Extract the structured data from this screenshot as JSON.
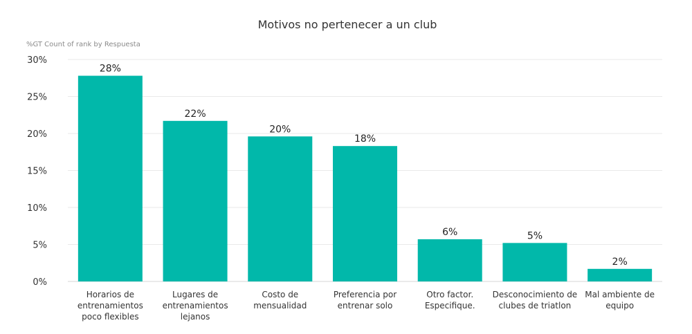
{
  "chart_data": {
    "type": "bar",
    "title": "Motivos no pertenecer a un club",
    "subtitle": "%GT Count of rank by Respuesta",
    "categories": [
      [
        "Horarios de",
        "entrenamientos",
        "poco flexibles"
      ],
      [
        "Lugares de",
        "entrenamientos",
        "lejanos"
      ],
      [
        "Costo de",
        "mensualidad"
      ],
      [
        "Preferencia por",
        "entrenar solo"
      ],
      [
        "Otro factor.",
        "Especifique."
      ],
      [
        "Desconocimiento de",
        "clubes de triatlon"
      ],
      [
        "Mal ambiente de",
        "equipo"
      ]
    ],
    "values": [
      0.278,
      0.217,
      0.196,
      0.183,
      0.057,
      0.052,
      0.017
    ],
    "data_labels": [
      "28%",
      "22%",
      "20%",
      "18%",
      "6%",
      "5%",
      "2%"
    ],
    "ylim": [
      0,
      0.3
    ],
    "yticks": [
      0,
      0.05,
      0.1,
      0.15,
      0.2,
      0.25,
      0.3
    ],
    "ytick_labels": [
      "0%",
      "5%",
      "10%",
      "15%",
      "20%",
      "25%",
      "30%"
    ],
    "grid": true,
    "bar_color": "#01b8aa"
  }
}
